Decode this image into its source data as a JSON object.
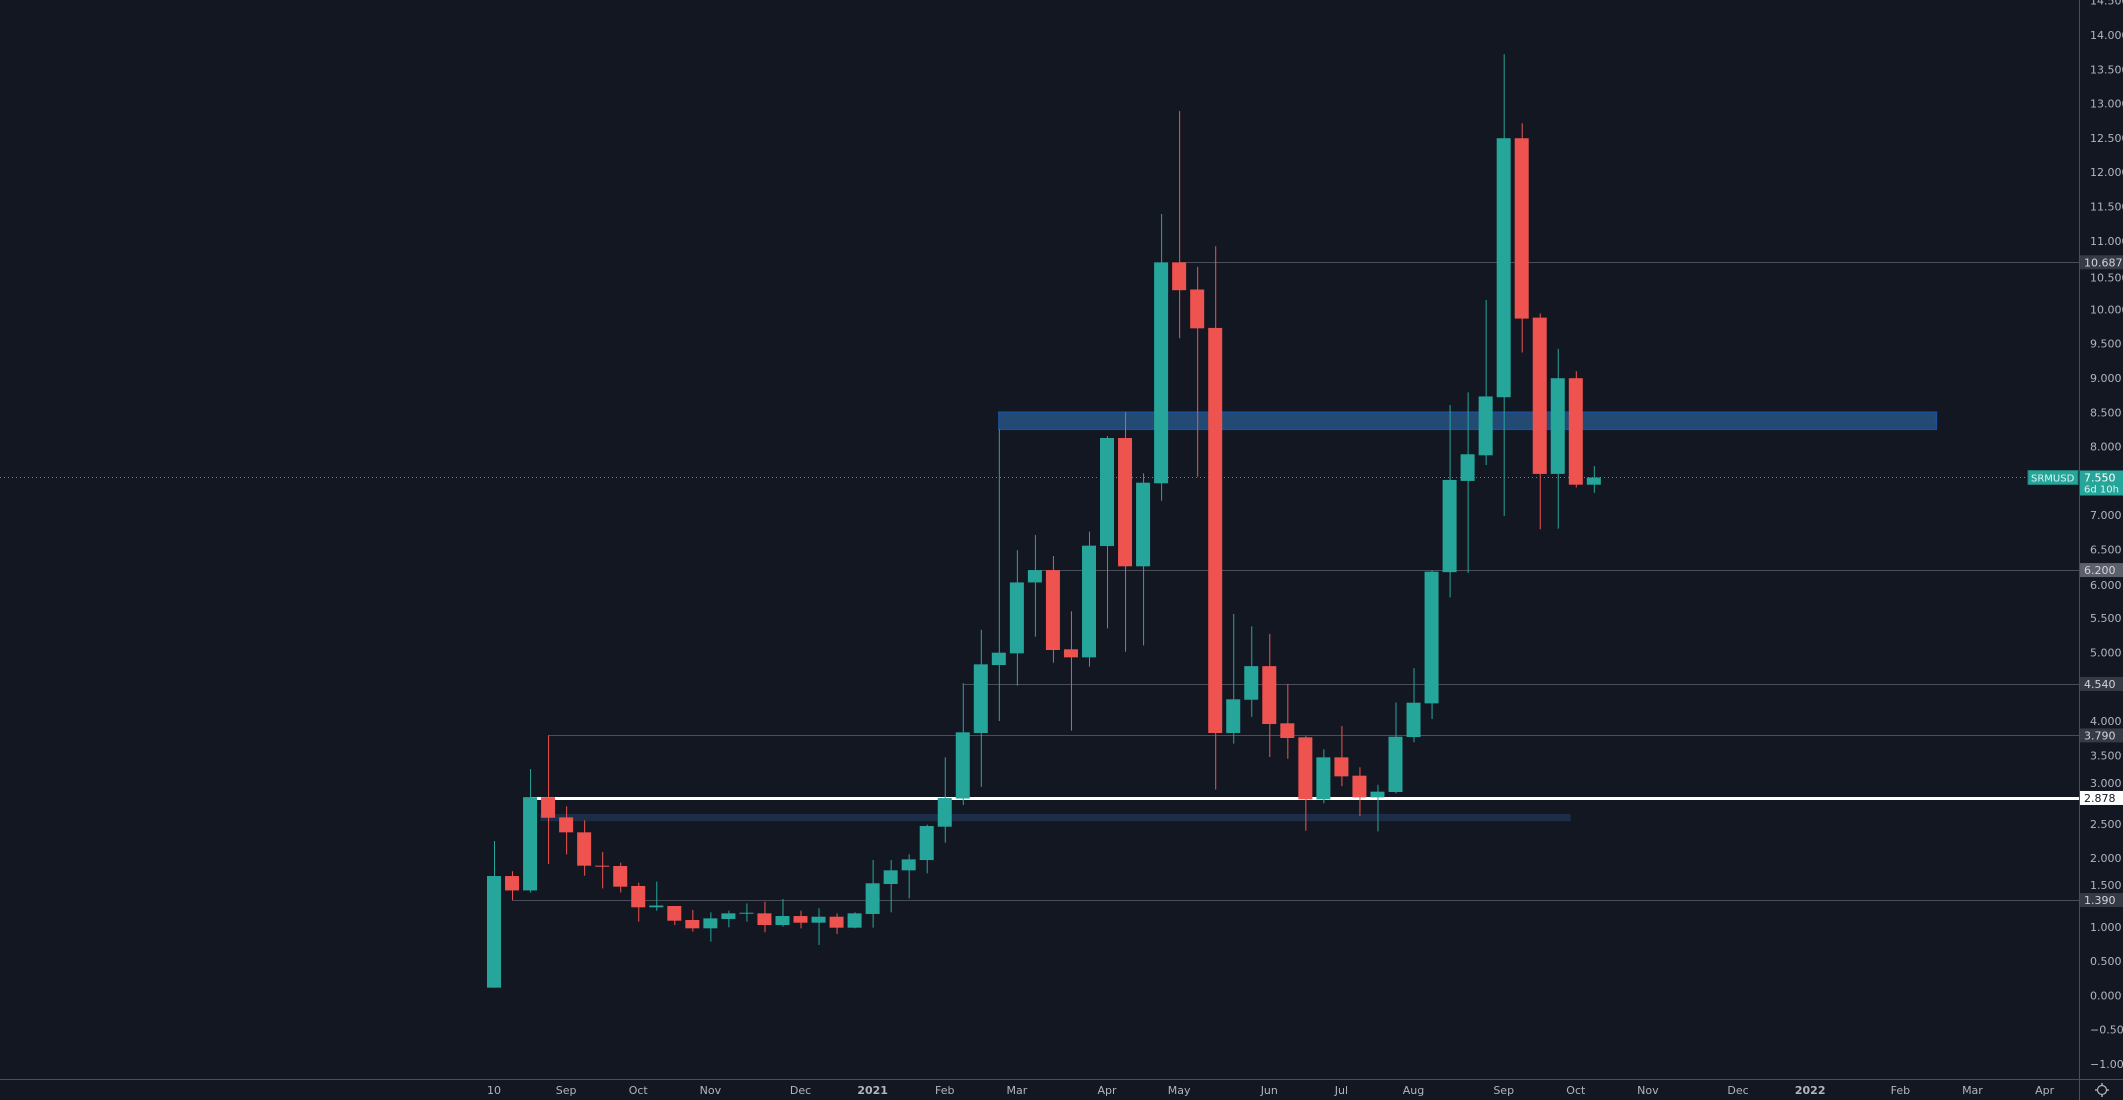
{
  "symbol": "SRMUSD",
  "colors": {
    "background": "#131722",
    "up": "#26a69a",
    "down": "#ef5350",
    "axis_text": "#b2b5be",
    "axis_line": "#4a4e59",
    "level_line": "#4a4e59",
    "zone_fill": "#234a72",
    "zone_border": "#1c4f9c",
    "band_fill": "#1c2d48",
    "key_level": "#ffffff"
  },
  "chart_data": {
    "type": "candlestick",
    "interval": "weekly",
    "ylim": [
      -1,
      14.5
    ],
    "grid": false,
    "columns": [
      "date",
      "open",
      "high",
      "low",
      "close"
    ],
    "candles": [
      [
        "2020-08-10",
        0.113,
        2.25,
        0.11,
        1.74
      ],
      [
        "2020-08-17",
        1.74,
        1.81,
        1.39,
        1.53
      ],
      [
        "2020-08-24",
        1.53,
        3.3,
        1.5,
        2.89
      ],
      [
        "2020-08-31",
        2.89,
        3.79,
        1.915,
        2.59
      ],
      [
        "2020-09-07",
        2.595,
        2.756,
        2.056,
        2.377
      ],
      [
        "2020-09-14",
        2.377,
        2.552,
        1.745,
        1.891
      ],
      [
        "2020-09-21",
        1.891,
        2.09,
        1.56,
        1.88
      ],
      [
        "2020-09-28",
        1.886,
        1.935,
        1.5,
        1.585
      ],
      [
        "2020-10-05",
        1.595,
        1.643,
        1.075,
        1.284
      ],
      [
        "2020-10-12",
        1.284,
        1.658,
        1.235,
        1.31
      ],
      [
        "2020-10-19",
        1.303,
        1.303,
        1.026,
        1.089
      ],
      [
        "2020-10-26",
        1.099,
        1.245,
        0.929,
        0.978
      ],
      [
        "2020-11-02",
        0.978,
        1.211,
        0.783,
        1.123
      ],
      [
        "2020-11-09",
        1.114,
        1.235,
        0.992,
        1.196
      ],
      [
        "2020-11-16",
        1.196,
        1.342,
        1.075,
        1.205
      ],
      [
        "2020-11-23",
        1.196,
        1.366,
        0.92,
        1.026
      ],
      [
        "2020-11-30",
        1.026,
        1.405,
        1.002,
        1.157
      ],
      [
        "2020-12-07",
        1.157,
        1.235,
        0.977,
        1.06
      ],
      [
        "2020-12-14",
        1.06,
        1.27,
        0.735,
        1.147
      ],
      [
        "2020-12-21",
        1.147,
        1.196,
        0.895,
        0.987
      ],
      [
        "2020-12-28",
        0.987,
        1.211,
        0.978,
        1.196
      ],
      [
        "2021-01-04",
        1.187,
        1.974,
        0.987,
        1.634
      ],
      [
        "2021-01-11",
        1.624,
        1.974,
        1.211,
        1.823
      ],
      [
        "2021-01-18",
        1.823,
        2.056,
        1.415,
        1.983
      ],
      [
        "2021-01-25",
        1.973,
        2.49,
        1.78,
        2.469
      ],
      [
        "2021-02-01",
        2.459,
        3.47,
        2.226,
        2.877
      ],
      [
        "2021-02-08",
        2.87,
        4.55,
        2.775,
        3.835
      ],
      [
        "2021-02-15",
        3.825,
        5.33,
        3.04,
        4.826
      ],
      [
        "2021-02-22",
        4.816,
        8.25,
        4.0,
        4.996
      ],
      [
        "2021-03-01",
        4.986,
        6.49,
        4.515,
        6.02
      ],
      [
        "2021-03-08",
        6.02,
        6.71,
        5.23,
        6.2
      ],
      [
        "2021-03-15",
        6.2,
        6.405,
        4.85,
        5.035
      ],
      [
        "2021-03-22",
        5.045,
        5.6,
        3.86,
        4.928
      ],
      [
        "2021-03-29",
        4.928,
        6.76,
        4.79,
        6.556
      ],
      [
        "2021-04-05",
        6.55,
        8.155,
        5.35,
        8.125
      ],
      [
        "2021-04-12",
        8.125,
        8.5,
        5.01,
        6.255
      ],
      [
        "2021-04-19",
        6.255,
        7.61,
        5.1,
        7.474
      ],
      [
        "2021-04-26",
        7.465,
        11.39,
        7.21,
        10.686
      ],
      [
        "2021-05-03",
        10.686,
        12.89,
        9.58,
        10.28
      ],
      [
        "2021-05-10",
        10.29,
        10.62,
        7.56,
        9.724
      ],
      [
        "2021-05-17",
        9.73,
        10.92,
        3.0,
        3.825
      ],
      [
        "2021-05-24",
        3.825,
        5.56,
        3.67,
        4.316
      ],
      [
        "2021-05-31",
        4.31,
        5.38,
        4.06,
        4.8
      ],
      [
        "2021-06-07",
        4.8,
        5.27,
        3.475,
        3.956
      ],
      [
        "2021-06-14",
        3.966,
        4.54,
        3.45,
        3.752
      ],
      [
        "2021-06-21",
        3.762,
        3.78,
        2.4,
        2.858
      ],
      [
        "2021-06-28",
        2.858,
        3.587,
        2.8,
        3.47
      ],
      [
        "2021-07-05",
        3.47,
        3.927,
        3.05,
        3.193
      ],
      [
        "2021-07-12",
        3.203,
        3.325,
        2.615,
        2.887
      ],
      [
        "2021-07-19",
        2.887,
        3.07,
        2.39,
        2.97
      ],
      [
        "2021-07-26",
        2.965,
        4.27,
        2.945,
        3.771
      ],
      [
        "2021-08-02",
        3.766,
        4.77,
        3.69,
        4.267
      ],
      [
        "2021-08-09",
        4.257,
        6.2,
        4.03,
        6.177
      ],
      [
        "2021-08-16",
        6.17,
        8.606,
        5.8,
        7.514
      ],
      [
        "2021-08-23",
        7.5,
        8.79,
        6.16,
        7.888
      ],
      [
        "2021-08-30",
        7.873,
        10.137,
        7.732,
        8.731
      ],
      [
        "2021-09-06",
        8.72,
        13.72,
        6.988,
        12.495
      ],
      [
        "2021-09-13",
        12.495,
        12.714,
        9.372,
        9.866
      ],
      [
        "2021-09-20",
        9.88,
        9.94,
        6.795,
        7.602
      ],
      [
        "2021-09-27",
        7.602,
        9.424,
        6.805,
        8.997
      ],
      [
        "2021-10-04",
        8.997,
        9.1,
        7.404,
        7.445
      ],
      [
        "2021-10-11",
        7.445,
        7.716,
        7.326,
        7.55
      ]
    ],
    "x_ticks": [
      {
        "label": "10",
        "date": "2020-08-10",
        "bold": false
      },
      {
        "label": "Sep",
        "date": "2020-09-07",
        "bold": false
      },
      {
        "label": "Oct",
        "date": "2020-10-05",
        "bold": false
      },
      {
        "label": "Nov",
        "date": "2020-11-02",
        "bold": false
      },
      {
        "label": "Dec",
        "date": "2020-12-07",
        "bold": false
      },
      {
        "label": "2021",
        "date": "2021-01-04",
        "bold": true
      },
      {
        "label": "Feb",
        "date": "2021-02-01",
        "bold": false
      },
      {
        "label": "Mar",
        "date": "2021-03-01",
        "bold": false
      },
      {
        "label": "Apr",
        "date": "2021-04-05",
        "bold": false
      },
      {
        "label": "May",
        "date": "2021-05-03",
        "bold": false
      },
      {
        "label": "Jun",
        "date": "2021-06-07",
        "bold": false
      },
      {
        "label": "Jul",
        "date": "2021-07-05",
        "bold": false
      },
      {
        "label": "Aug",
        "date": "2021-08-02",
        "bold": false
      },
      {
        "label": "Sep",
        "date": "2021-09-06",
        "bold": false
      },
      {
        "label": "Oct",
        "date": "2021-10-04",
        "bold": false
      },
      {
        "label": "Nov",
        "date": "2021-11-01",
        "bold": false
      },
      {
        "label": "Dec",
        "date": "2021-12-06",
        "bold": false
      },
      {
        "label": "2022",
        "date": "2022-01-03",
        "bold": true
      },
      {
        "label": "Feb",
        "date": "2022-02-07",
        "bold": false
      },
      {
        "label": "Mar",
        "date": "2022-03-07",
        "bold": false
      },
      {
        "label": "Apr",
        "date": "2022-04-04",
        "bold": false
      }
    ],
    "y_ticks": [
      {
        "value": 14.5,
        "label": "14.500"
      },
      {
        "value": 14,
        "label": "14.000"
      },
      {
        "value": 13.5,
        "label": "13.500"
      },
      {
        "value": 13,
        "label": "13.000"
      },
      {
        "value": 12.5,
        "label": "12.500"
      },
      {
        "value": 12,
        "label": "12.000"
      },
      {
        "value": 11.5,
        "label": "11.500"
      },
      {
        "value": 11,
        "label": "11.000"
      },
      {
        "value": 10.5,
        "label": "10.500"
      },
      {
        "value": 10,
        "label": "10.000"
      },
      {
        "value": 9.5,
        "label": "9.500"
      },
      {
        "value": 9,
        "label": "9.000"
      },
      {
        "value": 8.5,
        "label": "8.500"
      },
      {
        "value": 8,
        "label": "8.000"
      },
      {
        "value": 7,
        "label": "7.000"
      },
      {
        "value": 6.5,
        "label": "6.500"
      },
      {
        "value": 6,
        "label": "6.000"
      },
      {
        "value": 5.5,
        "label": "5.500"
      },
      {
        "value": 5,
        "label": "5.000"
      },
      {
        "value": 4,
        "label": "4.000"
      },
      {
        "value": 3.5,
        "label": "3.500"
      },
      {
        "value": 3,
        "label": "3.000"
      },
      {
        "value": 2.5,
        "label": "2.500"
      },
      {
        "value": 2,
        "label": "2.000"
      },
      {
        "value": 1.5,
        "label": "1.500"
      },
      {
        "value": 1,
        "label": "1.000"
      },
      {
        "value": 0.5,
        "label": "0.500"
      },
      {
        "value": 0,
        "label": "0.000"
      },
      {
        "value": -0.5,
        "label": "−0.500"
      },
      {
        "value": -1,
        "label": "−1.000"
      }
    ],
    "horizontal_levels": [
      {
        "price": 10.687,
        "label": "10.687",
        "from": "2021-05-03",
        "style": "gray"
      },
      {
        "price": 6.2,
        "label": "6.200",
        "from": "2021-03-10",
        "style": "gray-light"
      },
      {
        "price": 4.54,
        "label": "4.540",
        "from": "2021-02-08",
        "style": "gray"
      },
      {
        "price": 3.79,
        "label": "3.790",
        "from": "2020-08-31",
        "style": "gray"
      },
      {
        "price": 2.878,
        "label": "2.878",
        "from": "2020-08-24",
        "style": "white"
      },
      {
        "price": 1.39,
        "label": "1.390",
        "from": "2020-08-17",
        "style": "gray"
      }
    ],
    "zones": [
      {
        "from": "2021-02-22",
        "to": "2022-02-21",
        "low": 8.252,
        "high": 8.502,
        "style": "zone"
      },
      {
        "from": "2020-08-28",
        "to": "2021-10-02",
        "low": 2.54,
        "high": 2.645,
        "style": "band"
      }
    ],
    "last_price": {
      "value": 7.55,
      "label": "7.550",
      "countdown": "6d 10h"
    }
  },
  "axis": {
    "settings_icon": "gear-icon"
  }
}
